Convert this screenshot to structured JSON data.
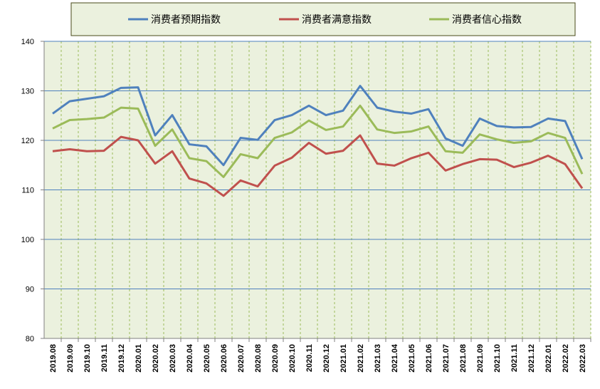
{
  "chart_data": {
    "type": "line",
    "title": "",
    "xlabel": "",
    "ylabel": "",
    "ylim": [
      80,
      140
    ],
    "yticks": [
      80,
      90,
      100,
      110,
      120,
      130,
      140
    ],
    "grid": {
      "horizontal": true,
      "vertical_dashed": true
    },
    "legend_position": "top",
    "background": "#ebf1de",
    "categories": [
      "2019.08",
      "2019.09",
      "2019.10",
      "2019.11",
      "2019.12",
      "2020.01",
      "2020.02",
      "2020.03",
      "2020.04",
      "2020.05",
      "2020.06",
      "2020.07",
      "2020.08",
      "2020.09",
      "2020.10",
      "2020.11",
      "2020.12",
      "2021.01",
      "2021.02",
      "2021.03",
      "2021.04",
      "2021.05",
      "2021.06",
      "2021.07",
      "2021.08",
      "2021.09",
      "2021.10",
      "2021.11",
      "2021.12",
      "2022.01",
      "2022.02",
      "2022.03"
    ],
    "series": [
      {
        "name": "消费者预期指数",
        "color": "#4f81bd",
        "values": [
          125.4,
          127.9,
          128.4,
          128.9,
          130.6,
          130.7,
          121.0,
          125.1,
          119.2,
          118.8,
          115.0,
          120.5,
          120.1,
          124.1,
          125.1,
          127.0,
          125.1,
          126.0,
          131.0,
          126.6,
          125.8,
          125.4,
          126.3,
          120.4,
          118.9,
          124.4,
          122.9,
          122.6,
          122.7,
          124.4,
          123.9,
          116.2
        ]
      },
      {
        "name": "消费者满意指数",
        "color": "#c0504d",
        "values": [
          117.8,
          118.2,
          117.8,
          117.9,
          120.7,
          120.0,
          115.3,
          117.8,
          112.3,
          111.3,
          108.8,
          111.9,
          110.7,
          114.9,
          116.5,
          119.5,
          117.3,
          117.9,
          121.0,
          115.3,
          114.9,
          116.4,
          117.5,
          113.9,
          115.2,
          116.2,
          116.1,
          114.6,
          115.5,
          116.9,
          115.2,
          110.3
        ]
      },
      {
        "name": "消费者信心指数",
        "color": "#9bbb59",
        "values": [
          122.4,
          124.1,
          124.3,
          124.6,
          126.6,
          126.4,
          118.9,
          122.2,
          116.4,
          115.8,
          112.6,
          117.2,
          116.4,
          120.5,
          121.6,
          124.0,
          122.1,
          122.8,
          127.0,
          122.2,
          121.5,
          121.8,
          122.8,
          117.8,
          117.5,
          121.2,
          120.2,
          119.5,
          119.8,
          121.5,
          120.5,
          113.2
        ]
      }
    ]
  }
}
